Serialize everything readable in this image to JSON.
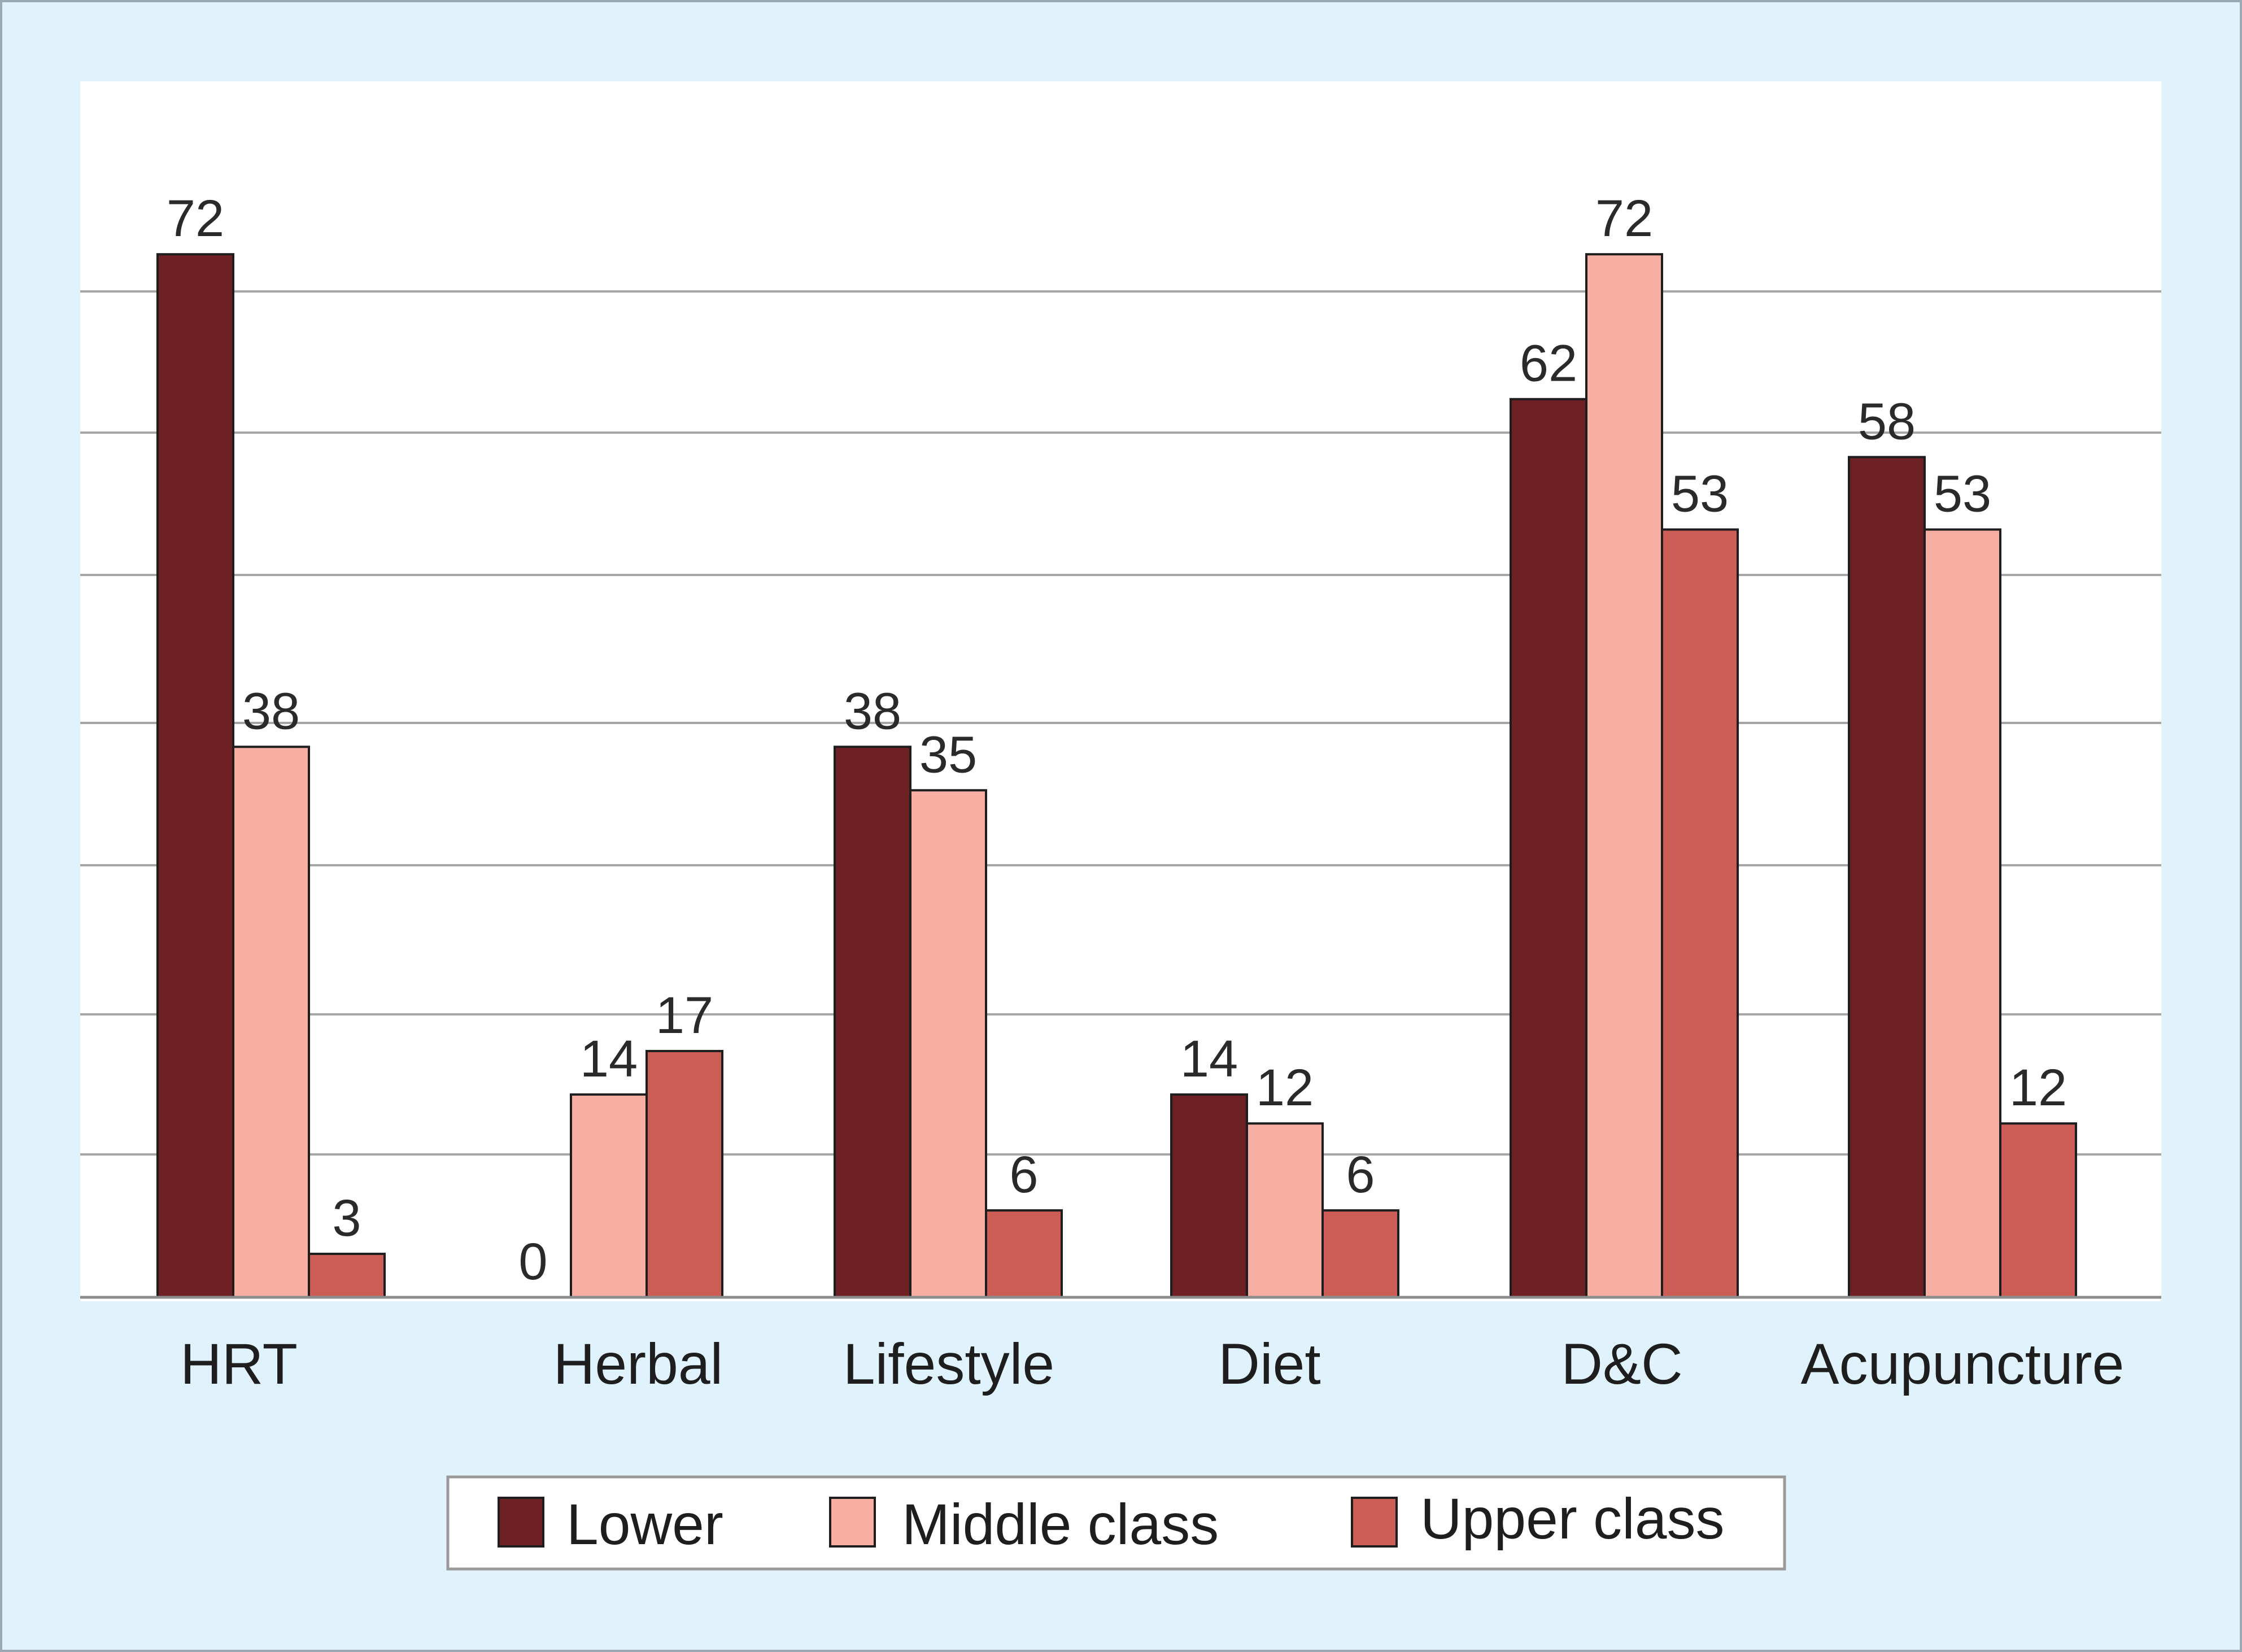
{
  "chart_data": {
    "type": "bar",
    "categories": [
      "HRT",
      "Herbal",
      "Lifestyle",
      "Diet",
      "D&C",
      "Acupuncture"
    ],
    "series": [
      {
        "name": "Lower",
        "color": "#6e2024",
        "values": [
          72,
          0,
          38,
          14,
          62,
          58
        ]
      },
      {
        "name": "Middle class",
        "color": "#f7aea3",
        "values": [
          38,
          14,
          35,
          12,
          72,
          53
        ]
      },
      {
        "name": "Upper class",
        "color": "#cc5e57",
        "values": [
          3,
          17,
          6,
          6,
          53,
          12
        ]
      }
    ],
    "title": "",
    "xlabel": "",
    "ylabel": "",
    "grid": true,
    "legend_position": "bottom",
    "colors": {
      "frame_background": "#e0f2fb",
      "plot_background": "#ffffff",
      "gridline": "#a6a6a6",
      "bar_outline": "#1e1e1e"
    }
  }
}
